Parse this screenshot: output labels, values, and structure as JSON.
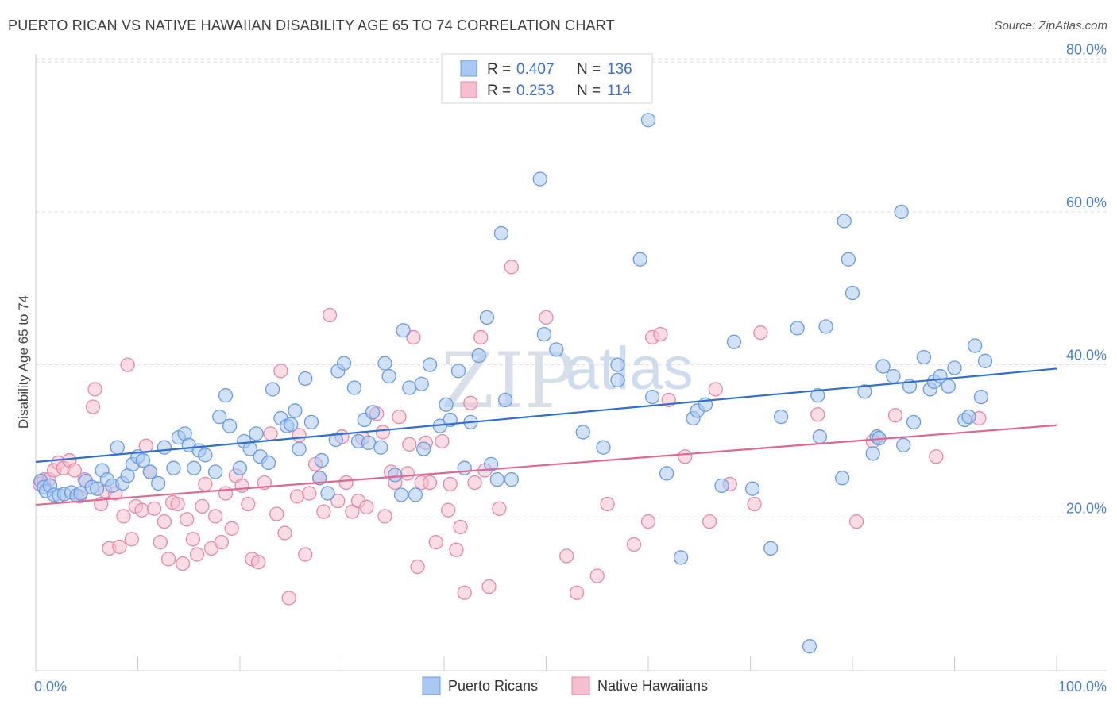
{
  "title": "PUERTO RICAN VS NATIVE HAWAIIAN DISABILITY AGE 65 TO 74 CORRELATION CHART",
  "source": "Source: ZipAtlas.com",
  "watermark": {
    "zip": "ZIP",
    "atlas": "atlas"
  },
  "colors": {
    "blue_fill": "#a9c8f2",
    "blue_stroke": "#6a9be0",
    "blue_line": "#2f6fd0",
    "pink_fill": "#f6bfd0",
    "pink_stroke": "#e38aa8",
    "pink_line": "#e06890",
    "grid": "#dddddd",
    "axis_text": "#4a7fd0"
  },
  "legend": {
    "rows": [
      {
        "r_label": "R =",
        "r_value": "0.407",
        "n_label": "N =",
        "n_value": "136"
      },
      {
        "r_label": "R =",
        "r_value": "0.253",
        "n_label": "N =",
        "n_value": "114"
      }
    ]
  },
  "bottom_legend": [
    "Puerto Ricans",
    "Native Hawaiians"
  ],
  "chart_data": {
    "type": "scatter",
    "title": "PUERTO RICAN VS NATIVE HAWAIIAN DISABILITY AGE 65 TO 74 CORRELATION CHART",
    "xlabel": "",
    "ylabel": "Disability Age 65 to 74",
    "xlim": [
      0,
      100
    ],
    "ylim": [
      0,
      82
    ],
    "x_tick_labels": [
      "0.0%",
      "100.0%"
    ],
    "y_ticks": [
      20,
      40,
      60,
      80
    ],
    "y_tick_labels": [
      "20.0%",
      "40.0%",
      "60.0%",
      "80.0%"
    ],
    "grid": true,
    "legend_position": "top-center",
    "series": [
      {
        "name": "Puerto Ricans",
        "r": 0.407,
        "n": 136,
        "trend": {
          "x": [
            0,
            100
          ],
          "y": [
            27.3,
            39.5
          ]
        },
        "points": [
          [
            0.5,
            24.8
          ],
          [
            0.8,
            24.0
          ],
          [
            1.0,
            23.5
          ],
          [
            1.4,
            24.2
          ],
          [
            1.8,
            23.0
          ],
          [
            2.3,
            22.9
          ],
          [
            2.8,
            23.1
          ],
          [
            3.5,
            23.3
          ],
          [
            4.0,
            22.9
          ],
          [
            4.4,
            23.2
          ],
          [
            4.9,
            24.8
          ],
          [
            5.5,
            24.0
          ],
          [
            6.0,
            23.8
          ],
          [
            6.5,
            26.2
          ],
          [
            7.0,
            25.0
          ],
          [
            7.5,
            24.2
          ],
          [
            8.0,
            29.2
          ],
          [
            8.5,
            24.5
          ],
          [
            9.0,
            25.5
          ],
          [
            9.5,
            27.0
          ],
          [
            10.0,
            28.0
          ],
          [
            10.5,
            27.5
          ],
          [
            11.2,
            26.0
          ],
          [
            12.0,
            24.5
          ],
          [
            12.6,
            29.2
          ],
          [
            13.5,
            26.5
          ],
          [
            14.0,
            30.5
          ],
          [
            14.6,
            31.0
          ],
          [
            15.0,
            29.5
          ],
          [
            15.5,
            26.5
          ],
          [
            16.0,
            28.8
          ],
          [
            16.6,
            28.2
          ],
          [
            17.6,
            26.0
          ],
          [
            18.0,
            33.2
          ],
          [
            18.6,
            36.0
          ],
          [
            19.0,
            32.0
          ],
          [
            20.0,
            26.5
          ],
          [
            20.4,
            30.0
          ],
          [
            21.0,
            29.0
          ],
          [
            21.6,
            31.0
          ],
          [
            22.0,
            28.0
          ],
          [
            22.8,
            27.2
          ],
          [
            23.2,
            36.8
          ],
          [
            24.0,
            33.0
          ],
          [
            24.6,
            32.0
          ],
          [
            25.0,
            32.2
          ],
          [
            25.4,
            34.0
          ],
          [
            25.8,
            29.0
          ],
          [
            26.4,
            38.2
          ],
          [
            27.0,
            32.5
          ],
          [
            27.8,
            25.2
          ],
          [
            28.0,
            27.5
          ],
          [
            28.6,
            23.2
          ],
          [
            29.4,
            30.2
          ],
          [
            29.6,
            39.2
          ],
          [
            30.2,
            40.2
          ],
          [
            31.2,
            37.0
          ],
          [
            31.6,
            30.0
          ],
          [
            32.2,
            32.8
          ],
          [
            32.6,
            29.8
          ],
          [
            33.0,
            33.8
          ],
          [
            33.8,
            29.2
          ],
          [
            34.2,
            40.2
          ],
          [
            34.6,
            38.5
          ],
          [
            35.2,
            25.6
          ],
          [
            35.8,
            23.0
          ],
          [
            36.0,
            44.5
          ],
          [
            36.6,
            37.0
          ],
          [
            37.2,
            23.0
          ],
          [
            37.8,
            37.5
          ],
          [
            38.0,
            29.0
          ],
          [
            38.6,
            40.0
          ],
          [
            39.6,
            32.0
          ],
          [
            40.2,
            34.8
          ],
          [
            40.6,
            32.8
          ],
          [
            41.4,
            39.2
          ],
          [
            42.0,
            26.5
          ],
          [
            42.6,
            32.5
          ],
          [
            43.4,
            41.2
          ],
          [
            44.2,
            46.2
          ],
          [
            44.6,
            27.0
          ],
          [
            45.2,
            25.0
          ],
          [
            45.6,
            57.2
          ],
          [
            46.0,
            35.4
          ],
          [
            46.6,
            25.0
          ],
          [
            49.4,
            64.3
          ],
          [
            49.8,
            44.0
          ],
          [
            51.0,
            42.0
          ],
          [
            53.6,
            31.2
          ],
          [
            55.6,
            29.2
          ],
          [
            57.0,
            40.0
          ],
          [
            57.0,
            38.0
          ],
          [
            59.2,
            53.8
          ],
          [
            60.0,
            72.0
          ],
          [
            60.4,
            35.8
          ],
          [
            61.8,
            25.8
          ],
          [
            63.2,
            14.8
          ],
          [
            64.4,
            33.0
          ],
          [
            64.8,
            34.0
          ],
          [
            65.6,
            34.8
          ],
          [
            67.2,
            24.2
          ],
          [
            68.4,
            43.0
          ],
          [
            70.2,
            23.8
          ],
          [
            72.0,
            16.0
          ],
          [
            73.0,
            33.2
          ],
          [
            74.6,
            44.8
          ],
          [
            75.8,
            3.2
          ],
          [
            76.6,
            36.0
          ],
          [
            76.8,
            30.6
          ],
          [
            77.4,
            45.0
          ],
          [
            79.0,
            25.2
          ],
          [
            79.2,
            58.8
          ],
          [
            79.6,
            53.8
          ],
          [
            80.0,
            49.4
          ],
          [
            81.2,
            36.5
          ],
          [
            82.0,
            28.4
          ],
          [
            82.4,
            30.6
          ],
          [
            82.6,
            30.4
          ],
          [
            83.0,
            39.8
          ],
          [
            84.0,
            38.5
          ],
          [
            84.8,
            60.0
          ],
          [
            85.0,
            29.5
          ],
          [
            85.6,
            37.2
          ],
          [
            86.0,
            32.5
          ],
          [
            87.0,
            41.0
          ],
          [
            87.6,
            36.8
          ],
          [
            88.0,
            37.8
          ],
          [
            88.6,
            38.5
          ],
          [
            89.4,
            37.2
          ],
          [
            90.0,
            39.6
          ],
          [
            91.0,
            32.8
          ],
          [
            91.4,
            33.2
          ],
          [
            92.0,
            42.5
          ],
          [
            92.6,
            35.8
          ],
          [
            93.0,
            40.5
          ]
        ]
      },
      {
        "name": "Native Hawaiians",
        "r": 0.253,
        "n": 114,
        "trend": {
          "x": [
            0,
            100
          ],
          "y": [
            21.7,
            32.1
          ]
        },
        "points": [
          [
            0.4,
            24.4
          ],
          [
            0.8,
            25.0
          ],
          [
            1.3,
            25.0
          ],
          [
            1.8,
            26.2
          ],
          [
            2.2,
            27.2
          ],
          [
            2.7,
            26.5
          ],
          [
            3.3,
            27.5
          ],
          [
            3.8,
            26.2
          ],
          [
            4.3,
            22.8
          ],
          [
            4.8,
            25.0
          ],
          [
            5.6,
            34.5
          ],
          [
            5.8,
            36.8
          ],
          [
            6.4,
            21.8
          ],
          [
            6.8,
            23.5
          ],
          [
            7.2,
            16.0
          ],
          [
            7.8,
            23.2
          ],
          [
            8.2,
            16.2
          ],
          [
            8.6,
            20.2
          ],
          [
            9.0,
            40.0
          ],
          [
            9.4,
            17.2
          ],
          [
            9.8,
            21.5
          ],
          [
            10.4,
            21.0
          ],
          [
            10.8,
            29.4
          ],
          [
            11.2,
            26.0
          ],
          [
            11.6,
            21.2
          ],
          [
            12.2,
            16.8
          ],
          [
            12.6,
            19.5
          ],
          [
            13.0,
            14.6
          ],
          [
            13.4,
            22.0
          ],
          [
            13.9,
            21.8
          ],
          [
            14.4,
            14.0
          ],
          [
            14.8,
            19.8
          ],
          [
            15.4,
            17.2
          ],
          [
            15.8,
            15.2
          ],
          [
            16.3,
            21.5
          ],
          [
            16.6,
            24.4
          ],
          [
            17.2,
            16.0
          ],
          [
            17.6,
            20.2
          ],
          [
            18.2,
            16.8
          ],
          [
            18.6,
            23.2
          ],
          [
            19.2,
            18.6
          ],
          [
            19.6,
            25.5
          ],
          [
            20.2,
            24.2
          ],
          [
            20.8,
            21.8
          ],
          [
            21.2,
            14.6
          ],
          [
            21.8,
            14.2
          ],
          [
            22.4,
            24.6
          ],
          [
            23.0,
            31.0
          ],
          [
            23.6,
            20.5
          ],
          [
            24.0,
            39.2
          ],
          [
            24.4,
            18.0
          ],
          [
            24.8,
            9.5
          ],
          [
            25.6,
            22.8
          ],
          [
            25.8,
            30.8
          ],
          [
            26.4,
            15.2
          ],
          [
            26.8,
            23.2
          ],
          [
            27.4,
            27.0
          ],
          [
            27.8,
            25.2
          ],
          [
            28.2,
            20.8
          ],
          [
            28.8,
            46.5
          ],
          [
            29.6,
            22.2
          ],
          [
            30.0,
            30.6
          ],
          [
            30.4,
            24.6
          ],
          [
            31.0,
            20.8
          ],
          [
            31.6,
            22.2
          ],
          [
            32.0,
            30.4
          ],
          [
            32.4,
            21.4
          ],
          [
            33.4,
            33.6
          ],
          [
            34.0,
            31.2
          ],
          [
            34.2,
            20.2
          ],
          [
            34.8,
            26.0
          ],
          [
            35.2,
            24.6
          ],
          [
            35.6,
            33.2
          ],
          [
            36.4,
            25.8
          ],
          [
            36.6,
            29.6
          ],
          [
            37.0,
            43.6
          ],
          [
            37.4,
            13.6
          ],
          [
            37.8,
            24.6
          ],
          [
            38.2,
            29.8
          ],
          [
            38.6,
            24.6
          ],
          [
            39.2,
            16.8
          ],
          [
            39.8,
            30.0
          ],
          [
            40.4,
            21.0
          ],
          [
            40.6,
            24.4
          ],
          [
            41.2,
            15.8
          ],
          [
            41.6,
            18.8
          ],
          [
            42.0,
            10.2
          ],
          [
            42.6,
            35.0
          ],
          [
            43.0,
            24.6
          ],
          [
            43.6,
            43.6
          ],
          [
            44.0,
            26.2
          ],
          [
            44.4,
            11.0
          ],
          [
            45.4,
            21.2
          ],
          [
            46.6,
            52.8
          ],
          [
            50.0,
            46.2
          ],
          [
            52.0,
            15.0
          ],
          [
            53.0,
            10.2
          ],
          [
            55.0,
            12.4
          ],
          [
            56.0,
            21.8
          ],
          [
            58.6,
            16.5
          ],
          [
            60.0,
            19.5
          ],
          [
            60.4,
            43.6
          ],
          [
            61.2,
            44.0
          ],
          [
            62.0,
            35.4
          ],
          [
            63.6,
            28.0
          ],
          [
            66.6,
            36.8
          ],
          [
            66.0,
            19.5
          ],
          [
            68.0,
            24.4
          ],
          [
            70.4,
            21.8
          ],
          [
            71.0,
            44.2
          ],
          [
            76.6,
            33.5
          ],
          [
            80.4,
            19.5
          ],
          [
            82.0,
            30.0
          ],
          [
            84.2,
            33.4
          ],
          [
            88.2,
            28.0
          ],
          [
            92.4,
            33.0
          ]
        ]
      }
    ]
  }
}
